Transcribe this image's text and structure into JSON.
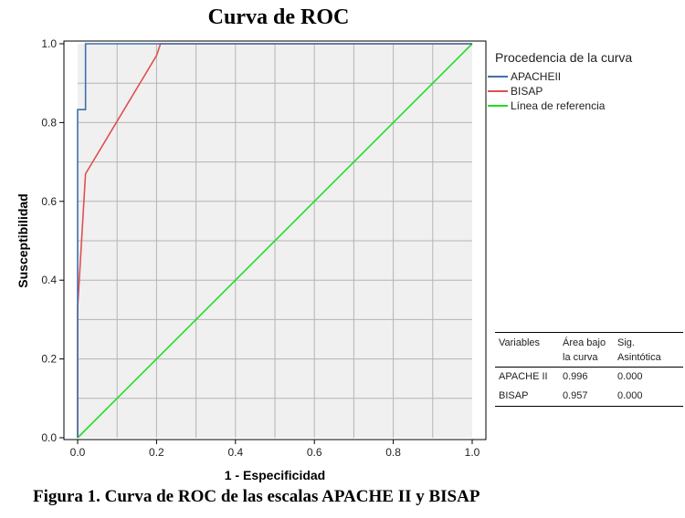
{
  "chart_data": {
    "type": "line",
    "title": "Curva de ROC",
    "xlabel": "1 - Especificidad",
    "ylabel": "Susceptibilidad",
    "xlim": [
      0,
      1
    ],
    "ylim": [
      0,
      1
    ],
    "xticks": [
      "0.0",
      "0.2",
      "0.4",
      "0.6",
      "0.8",
      "1.0"
    ],
    "yticks": [
      "0.0",
      "0.2",
      "0.4",
      "0.6",
      "0.8",
      "1.0"
    ],
    "grid": true,
    "legend_title": "Procedencia de la curva",
    "legend_position": "right",
    "series": [
      {
        "name": "APACHEII",
        "color": "#3f6fad",
        "points": [
          [
            0,
            0
          ],
          [
            0,
            0.833
          ],
          [
            0.02,
            0.833
          ],
          [
            0.02,
            0.95
          ],
          [
            0.02,
            1.0
          ],
          [
            1.0,
            1.0
          ]
        ]
      },
      {
        "name": "BISAP",
        "color": "#e05050",
        "points": [
          [
            0,
            0
          ],
          [
            0,
            0.33
          ],
          [
            0.02,
            0.67
          ],
          [
            0.2,
            0.97
          ],
          [
            0.21,
            1.0
          ],
          [
            1.0,
            1.0
          ]
        ]
      },
      {
        "name": "Línea de referencia",
        "color": "#22dd22",
        "points": [
          [
            0,
            0
          ],
          [
            1.0,
            1.0
          ]
        ]
      }
    ]
  },
  "stats_table": {
    "headers": [
      "Variables",
      "Área bajo la curva",
      "Sig. Asintótica"
    ],
    "rows": [
      [
        "APACHE II",
        "0.996",
        "0.000"
      ],
      [
        "BISAP",
        "0.957",
        "0.000"
      ]
    ]
  },
  "caption": "Figura 1. Curva de ROC de las escalas APACHE II y BISAP"
}
